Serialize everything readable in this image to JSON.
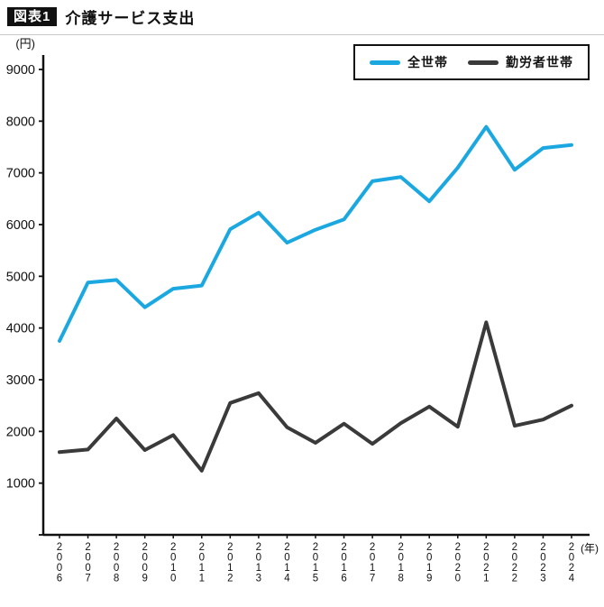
{
  "header": {
    "badge": "図表1",
    "title": "介護サービス支出"
  },
  "chart_data": {
    "type": "line",
    "title": "介護サービス支出",
    "unit_label": "(円)",
    "x_axis_suffix": "(年)",
    "ylim": [
      0,
      9000
    ],
    "ytick_step": 1000,
    "grid": false,
    "legend_position": "top-right",
    "categories": [
      "2006",
      "2007",
      "2008",
      "2009",
      "2010",
      "2011",
      "2012",
      "2013",
      "2014",
      "2015",
      "2016",
      "2017",
      "2018",
      "2019",
      "2020",
      "2021",
      "2022",
      "2023",
      "2024"
    ],
    "series": [
      {
        "name": "全世帯",
        "color": "#1BA8E0",
        "values": [
          3750,
          4880,
          4930,
          4400,
          4760,
          4820,
          5910,
          6230,
          5650,
          5900,
          6100,
          6840,
          6920,
          6450,
          7100,
          7890,
          7060,
          7480,
          7540
        ]
      },
      {
        "name": "勤労者世帯",
        "color": "#3A3A3A",
        "values": [
          1600,
          1650,
          2250,
          1640,
          1930,
          1240,
          2550,
          2740,
          2080,
          1780,
          2150,
          1760,
          2160,
          2480,
          2090,
          4110,
          2110,
          2230,
          2500
        ]
      }
    ]
  }
}
